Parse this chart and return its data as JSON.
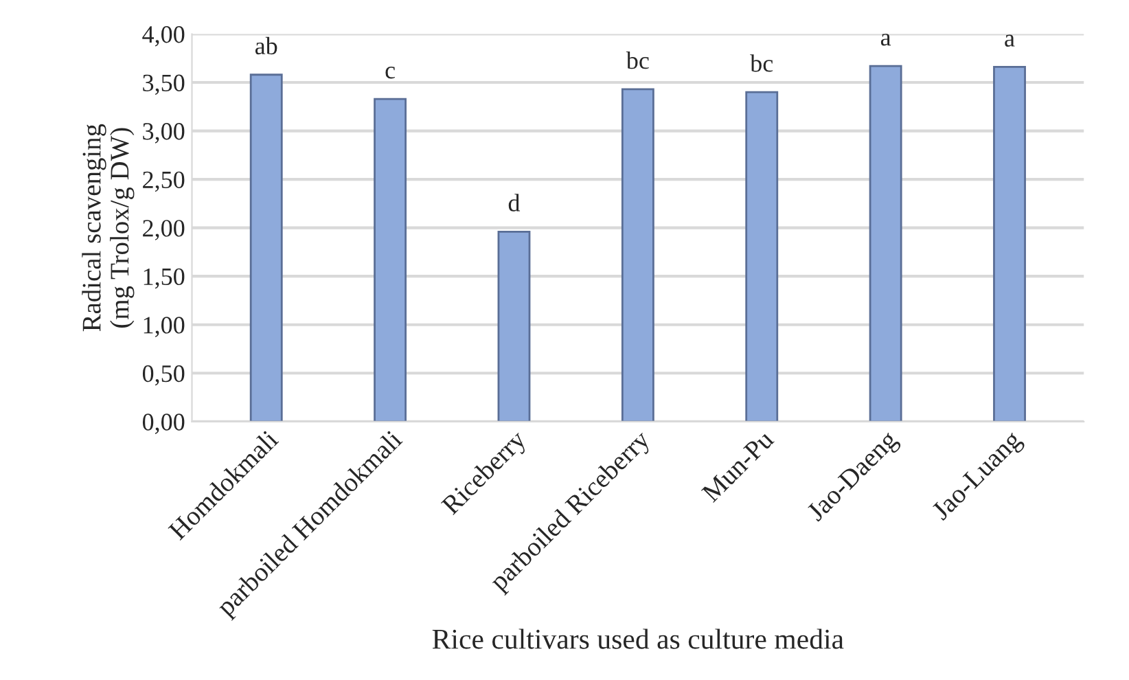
{
  "chart_data": {
    "type": "bar",
    "xlabel": "Rice cultivars used as culture media",
    "ylabel": "Radical scavenging\n(mg Trolox/g DW)",
    "categories": [
      "Homdokmali",
      "parboiled Homdokmali",
      "Riceberry",
      "parboiled Riceberry",
      "Mun-Pu",
      "Jao-Daeng",
      "Jao-Luang"
    ],
    "values": [
      3.58,
      3.33,
      1.96,
      3.43,
      3.4,
      3.67,
      3.66
    ],
    "color": "#8eaadb",
    "ylim": [
      0,
      4
    ],
    "yticks": [
      {
        "value": 0,
        "label": "0,00"
      },
      {
        "value": 0.5,
        "label": "0,50"
      },
      {
        "value": 1,
        "label": "1,00"
      },
      {
        "value": 1.5,
        "label": "1,50"
      },
      {
        "value": 2,
        "label": "2,00"
      },
      {
        "value": 2.5,
        "label": "2,50"
      },
      {
        "value": 3,
        "label": "3,00"
      },
      {
        "value": 3.5,
        "label": "3,50"
      },
      {
        "value": 4,
        "label": "4,00"
      }
    ],
    "grid": "y",
    "annotations": [
      {
        "text": "ab",
        "x": "Homdokmali",
        "y": 3.58
      },
      {
        "text": "c",
        "x": "parboiled Homdokmali",
        "y": 3.33
      },
      {
        "text": "d",
        "x": "Riceberry",
        "y": 1.96
      },
      {
        "text": "bc",
        "x": "parboiled Riceberry",
        "y": 3.43
      },
      {
        "text": "bc",
        "x": "Mun-Pu",
        "y": 3.4
      },
      {
        "text": "a",
        "x": "Jao-Daeng",
        "y": 3.67
      },
      {
        "text": "a",
        "x": "Jao-Luang",
        "y": 3.66
      }
    ]
  }
}
